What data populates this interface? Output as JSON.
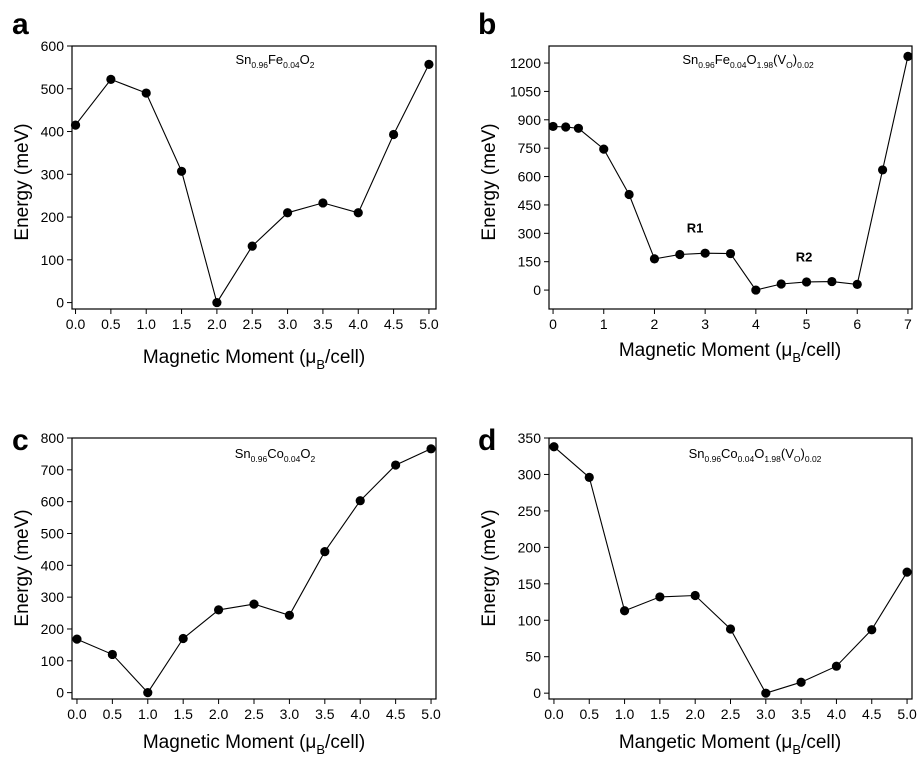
{
  "chart_data": [
    {
      "type": "line",
      "panel": "a",
      "title_parts": [
        {
          "t": "Sn",
          "s": false
        },
        {
          "t": "0.96",
          "s": true
        },
        {
          "t": "Fe",
          "s": false
        },
        {
          "t": "0.04",
          "s": true
        },
        {
          "t": "O",
          "s": false
        },
        {
          "t": "2",
          "s": true
        }
      ],
      "ylabel": "Energy (meV)",
      "xlabel_parts": [
        {
          "t": "Magnetic Moment (μ",
          "s": false
        },
        {
          "t": "B",
          "s": true
        },
        {
          "t": "/cell)",
          "s": false
        }
      ],
      "xlim": [
        -0.05,
        5.1
      ],
      "ylim": [
        -15,
        600
      ],
      "xticks": [
        0.0,
        0.5,
        1.0,
        1.5,
        2.0,
        2.5,
        3.0,
        3.5,
        4.0,
        4.5,
        5.0
      ],
      "xtick_labels": [
        "0.0",
        "0.5",
        "1.0",
        "1.5",
        "2.0",
        "2.5",
        "3.0",
        "3.5",
        "4.0",
        "4.5",
        "5.0"
      ],
      "yticks": [
        0,
        100,
        200,
        300,
        400,
        500,
        600
      ],
      "ytick_labels": [
        "0",
        "100",
        "200",
        "300",
        "400",
        "500",
        "600"
      ],
      "x": [
        0.0,
        0.5,
        1.0,
        1.5,
        2.0,
        2.5,
        3.0,
        3.5,
        4.0,
        4.5,
        5.0
      ],
      "y": [
        415,
        522,
        490,
        307,
        0,
        132,
        210,
        233,
        210,
        393,
        557
      ],
      "annotations": []
    },
    {
      "type": "line",
      "panel": "b",
      "title_parts": [
        {
          "t": "Sn",
          "s": false
        },
        {
          "t": "0.96",
          "s": true
        },
        {
          "t": "Fe",
          "s": false
        },
        {
          "t": "0.04",
          "s": true
        },
        {
          "t": "O",
          "s": false
        },
        {
          "t": "1.98",
          "s": true
        },
        {
          "t": "(V",
          "s": false
        },
        {
          "t": "O",
          "s": true
        },
        {
          "t": ")",
          "s": false
        },
        {
          "t": "0.02",
          "s": true
        }
      ],
      "ylabel": "Energy (meV)",
      "xlabel_parts": [
        {
          "t": "Magnetic Moment (μ",
          "s": false
        },
        {
          "t": "B",
          "s": true
        },
        {
          "t": "/cell)",
          "s": false
        }
      ],
      "xlim": [
        -0.08,
        7.08
      ],
      "ylim": [
        -100,
        1290
      ],
      "xticks": [
        0,
        1,
        2,
        3,
        4,
        5,
        6,
        7
      ],
      "xtick_labels": [
        "0",
        "1",
        "2",
        "3",
        "4",
        "5",
        "6",
        "7"
      ],
      "yticks": [
        0,
        150,
        300,
        450,
        600,
        750,
        900,
        1050,
        1200
      ],
      "ytick_labels": [
        "0",
        "150",
        "300",
        "450",
        "600",
        "750",
        "900",
        "1050",
        "1200"
      ],
      "x": [
        0.0,
        0.25,
        0.5,
        1.0,
        1.5,
        2.0,
        2.5,
        3.0,
        3.5,
        4.0,
        4.5,
        5.0,
        5.5,
        6.0,
        6.5,
        7.0
      ],
      "y": [
        865,
        862,
        855,
        745,
        505,
        165,
        188,
        195,
        193,
        0,
        32,
        43,
        45,
        30,
        635,
        1235
      ],
      "annotations": [
        {
          "text": "R1",
          "x": 2.8,
          "y": 305
        },
        {
          "text": "R2",
          "x": 4.95,
          "y": 150
        }
      ]
    },
    {
      "type": "line",
      "panel": "c",
      "title_parts": [
        {
          "t": "Sn",
          "s": false
        },
        {
          "t": "0.96",
          "s": true
        },
        {
          "t": "Co",
          "s": false
        },
        {
          "t": "0.04",
          "s": true
        },
        {
          "t": "O",
          "s": false
        },
        {
          "t": "2",
          "s": true
        }
      ],
      "ylabel": "Energy (meV)",
      "xlabel_parts": [
        {
          "t": "Magnetic Moment (μ",
          "s": false
        },
        {
          "t": "B",
          "s": true
        },
        {
          "t": "/cell)",
          "s": false
        }
      ],
      "xlim": [
        -0.07,
        5.07
      ],
      "ylim": [
        -20,
        800
      ],
      "xticks": [
        0.0,
        0.5,
        1.0,
        1.5,
        2.0,
        2.5,
        3.0,
        3.5,
        4.0,
        4.5,
        5.0
      ],
      "xtick_labels": [
        "0.0",
        "0.5",
        "1.0",
        "1.5",
        "2.0",
        "2.5",
        "3.0",
        "3.5",
        "4.0",
        "4.5",
        "5.0"
      ],
      "yticks": [
        0,
        100,
        200,
        300,
        400,
        500,
        600,
        700,
        800
      ],
      "ytick_labels": [
        "0",
        "100",
        "200",
        "300",
        "400",
        "500",
        "600",
        "700",
        "800"
      ],
      "x": [
        0.0,
        0.5,
        1.0,
        1.5,
        2.0,
        2.5,
        3.0,
        3.5,
        4.0,
        4.5,
        5.0
      ],
      "y": [
        168,
        120,
        0,
        170,
        260,
        278,
        243,
        443,
        603,
        715,
        766
      ],
      "annotations": []
    },
    {
      "type": "line",
      "panel": "d",
      "title_parts": [
        {
          "t": "Sn",
          "s": false
        },
        {
          "t": "0.96",
          "s": true
        },
        {
          "t": "Co",
          "s": false
        },
        {
          "t": "0.04",
          "s": true
        },
        {
          "t": "O",
          "s": false
        },
        {
          "t": "1.98",
          "s": true
        },
        {
          "t": "(V",
          "s": false
        },
        {
          "t": "O",
          "s": true
        },
        {
          "t": ")",
          "s": false
        },
        {
          "t": "0.02",
          "s": true
        }
      ],
      "ylabel": "Energy (meV)",
      "xlabel_parts": [
        {
          "t": "Mangetic Moment (μ",
          "s": false
        },
        {
          "t": "B",
          "s": true
        },
        {
          "t": "/cell)",
          "s": false
        }
      ],
      "xlim": [
        -0.07,
        5.07
      ],
      "ylim": [
        -8,
        350
      ],
      "xticks": [
        0.0,
        0.5,
        1.0,
        1.5,
        2.0,
        2.5,
        3.0,
        3.5,
        4.0,
        4.5,
        5.0
      ],
      "xtick_labels": [
        "0.0",
        "0.5",
        "1.0",
        "1.5",
        "2.0",
        "2.5",
        "3.0",
        "3.5",
        "4.0",
        "4.5",
        "5.0"
      ],
      "yticks": [
        0,
        50,
        100,
        150,
        200,
        250,
        300,
        350
      ],
      "ytick_labels": [
        "0",
        "50",
        "100",
        "150",
        "200",
        "250",
        "300",
        "350"
      ],
      "x": [
        0.0,
        0.5,
        1.0,
        1.5,
        2.0,
        2.5,
        3.0,
        3.5,
        4.0,
        4.5,
        5.0
      ],
      "y": [
        338,
        296,
        113,
        132,
        134,
        88,
        0,
        15,
        37,
        87,
        166
      ],
      "annotations": []
    }
  ]
}
